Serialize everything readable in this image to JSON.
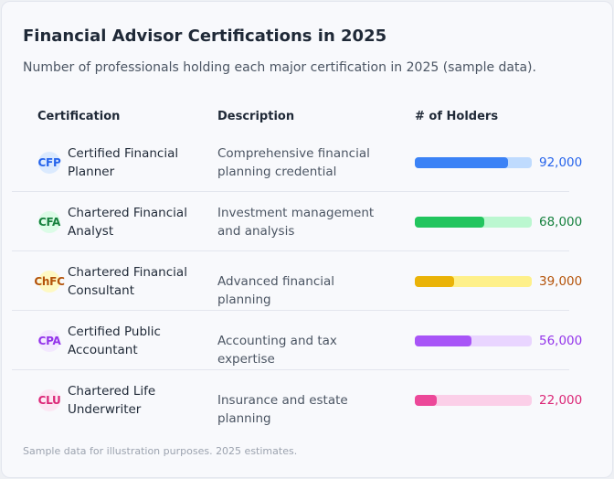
{
  "title": "Financial Advisor Certifications in 2025",
  "subtitle": "Number of professionals holding each major certification in 2025 (sample data).",
  "headers": {
    "certification": "Certification",
    "description": "Description",
    "holders": "# of Holders"
  },
  "rows": [
    {
      "abbr": "CFP",
      "name": "Certified Financial Planner",
      "description": "Comprehensive financial planning credential",
      "holders": 92000,
      "holders_label": "92,000",
      "color": "#3b82f6",
      "track": "#bfdbfe",
      "badge_bg": "#dbeafe",
      "text_color": "#2563eb"
    },
    {
      "abbr": "CFA",
      "name": "Chartered Financial Analyst",
      "description": "Investment management and analysis",
      "holders": 68000,
      "holders_label": "68,000",
      "color": "#22c55e",
      "track": "#bbf7d0",
      "badge_bg": "#dcfce7",
      "text_color": "#15803d"
    },
    {
      "abbr": "ChFC",
      "name": "Chartered Financial Consultant",
      "description": "Advanced financial planning",
      "holders": 39000,
      "holders_label": "39,000",
      "color": "#eab308",
      "track": "#fef08a",
      "badge_bg": "#fef9c3",
      "text_color": "#b45309"
    },
    {
      "abbr": "CPA",
      "name": "Certified Public Accountant",
      "description": "Accounting and tax expertise",
      "holders": 56000,
      "holders_label": "56,000",
      "color": "#a855f7",
      "track": "#e9d5ff",
      "badge_bg": "#f3e8ff",
      "text_color": "#9333ea"
    },
    {
      "abbr": "CLU",
      "name": "Chartered Life Underwriter",
      "description": "Insurance and estate planning",
      "holders": 22000,
      "holders_label": "22,000",
      "color": "#ec4899",
      "track": "#fbcfe8",
      "badge_bg": "#fce7f3",
      "text_color": "#db2777"
    }
  ],
  "footnote": "Sample data for illustration purposes. 2025 estimates."
}
